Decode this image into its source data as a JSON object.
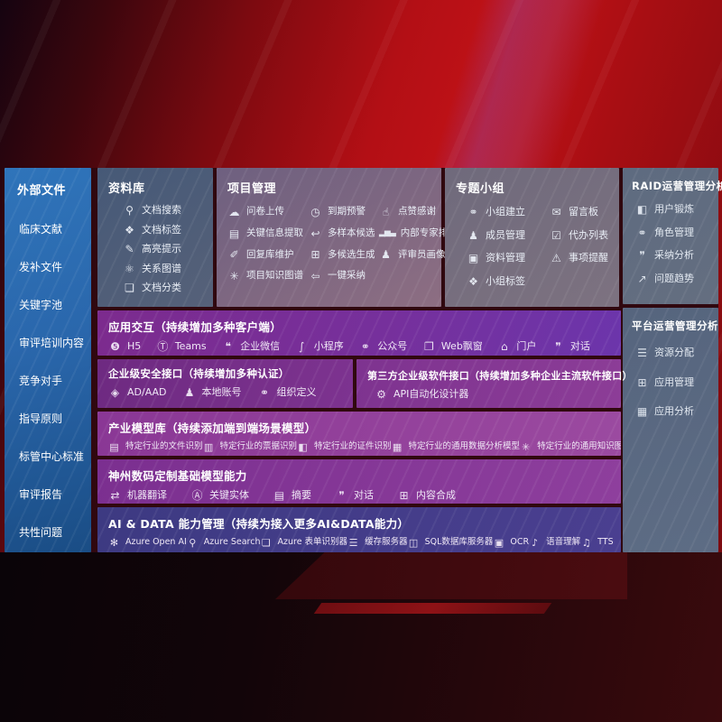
{
  "colors": {
    "background_red": "#b30f15",
    "sidebar_blue": "#2a6cb3",
    "panel_slate": "#5d6a80",
    "row_purple": "#7c2f91",
    "row_indigo": "#423a8a"
  },
  "sidebar": {
    "title": "外部文件",
    "items": [
      {
        "label": "临床文献"
      },
      {
        "label": "发补文件"
      },
      {
        "label": "关键字池"
      },
      {
        "label": "审评培训内容"
      },
      {
        "label": "竞争对手"
      },
      {
        "label": "指导原则"
      },
      {
        "label": "标管中心标准"
      },
      {
        "label": "审评报告"
      },
      {
        "label": "共性问题"
      }
    ]
  },
  "repository": {
    "title": "资料库",
    "items": [
      {
        "icon": "document-search-icon",
        "glyph": "⚲",
        "label": "文档搜索"
      },
      {
        "icon": "document-tag-icon",
        "glyph": "❖",
        "label": "文档标签"
      },
      {
        "icon": "highlighter-icon",
        "glyph": "✎",
        "label": "高亮提示"
      },
      {
        "icon": "relation-graph-icon",
        "glyph": "⚛",
        "label": "关系图谱"
      },
      {
        "icon": "document-category-icon",
        "glyph": "❏",
        "label": "文档分类"
      }
    ]
  },
  "project": {
    "title": "项目管理",
    "items": [
      {
        "icon": "cloud-upload-icon",
        "glyph": "☁",
        "label": "问卷上传"
      },
      {
        "icon": "alarm-icon",
        "glyph": "◷",
        "label": "到期预警"
      },
      {
        "icon": "thumbs-up-icon",
        "glyph": "☝",
        "label": "点赞感谢"
      },
      {
        "icon": "key-info-extract-icon",
        "glyph": "▤",
        "label": "关键信息提取"
      },
      {
        "icon": "reply-arrow-icon",
        "glyph": "↩",
        "label": "多样本候选"
      },
      {
        "icon": "ranking-icon",
        "glyph": "▂▅▃",
        "label": "内部专家排名"
      },
      {
        "icon": "pen-icon",
        "glyph": "✐",
        "label": "回复库维护"
      },
      {
        "icon": "puzzle-icon",
        "glyph": "⊞",
        "label": "多候选生成"
      },
      {
        "icon": "reviewer-portrait-icon",
        "glyph": "♟",
        "label": "评审员画像"
      },
      {
        "icon": "knowledge-graph-icon",
        "glyph": "✳",
        "label": "项目知识图谱"
      },
      {
        "icon": "adopt-arrow-icon",
        "glyph": "⇦",
        "label": "一键采纳"
      }
    ]
  },
  "topic_group": {
    "title": "专题小组",
    "items": [
      {
        "icon": "group-create-icon",
        "glyph": "⚭",
        "label": "小组建立"
      },
      {
        "icon": "bbs-board-icon",
        "glyph": "✉",
        "label": "留言板"
      },
      {
        "icon": "member-manage-icon",
        "glyph": "♟",
        "label": "成员管理"
      },
      {
        "icon": "todo-list-icon",
        "glyph": "☑",
        "label": "代办列表"
      },
      {
        "icon": "material-manage-icon",
        "glyph": "▣",
        "label": "资料管理"
      },
      {
        "icon": "reminder-bell-icon",
        "glyph": "⚠",
        "label": "事项提醒"
      },
      {
        "icon": "group-tag-icon",
        "glyph": "❖",
        "label": "小组标签"
      }
    ]
  },
  "raid": {
    "title": "RAID运营管理分析",
    "items": [
      {
        "icon": "user-card-icon",
        "glyph": "◧",
        "label": "用户锻炼"
      },
      {
        "icon": "role-manage-icon",
        "glyph": "⚭",
        "label": "角色管理"
      },
      {
        "icon": "adoption-analysis-icon",
        "glyph": "❞",
        "label": "采纳分析"
      },
      {
        "icon": "issue-trend-icon",
        "glyph": "↗",
        "label": "问题趋势"
      }
    ]
  },
  "platform": {
    "title": "平台运营管理分析",
    "items": [
      {
        "icon": "resource-list-icon",
        "glyph": "☰",
        "label": "资源分配"
      },
      {
        "icon": "app-grid-icon",
        "glyph": "⊞",
        "label": "应用管理"
      },
      {
        "icon": "app-analysis-icon",
        "glyph": "▦",
        "label": "应用分析"
      }
    ]
  },
  "interaction": {
    "title": "应用交互（持续增加多种客户端）",
    "items": [
      {
        "icon": "h5-icon",
        "glyph": "❺",
        "label": "H5"
      },
      {
        "icon": "teams-icon",
        "glyph": "Ⓣ",
        "label": "Teams"
      },
      {
        "icon": "wechat-work-icon",
        "glyph": "❝",
        "label": "企业微信"
      },
      {
        "icon": "miniprogram-icon",
        "glyph": "∫",
        "label": "小程序"
      },
      {
        "icon": "official-account-icon",
        "glyph": "⚭",
        "label": "公众号"
      },
      {
        "icon": "web-popup-icon",
        "glyph": "❐",
        "label": "Web飘窗"
      },
      {
        "icon": "portal-icon",
        "glyph": "⌂",
        "label": "门户"
      },
      {
        "icon": "dialog-icon",
        "glyph": "❞",
        "label": "对话"
      }
    ]
  },
  "security": {
    "title": "企业级安全接口（持续增加多种认证）",
    "items": [
      {
        "icon": "ad-aad-icon",
        "glyph": "◈",
        "label": "AD/AAD"
      },
      {
        "icon": "local-account-icon",
        "glyph": "♟",
        "label": "本地账号"
      },
      {
        "icon": "org-define-icon",
        "glyph": "⚭",
        "label": "组织定义"
      }
    ]
  },
  "third_party": {
    "title": "第三方企业级软件接口（持续增加多种企业主流软件接口）",
    "items": [
      {
        "icon": "api-designer-icon",
        "glyph": "⚙",
        "label": "API自动化设计器"
      }
    ]
  },
  "industry_models": {
    "title": "产业模型库（持续添加端到端场景模型）",
    "items": [
      {
        "icon": "file-recognition-icon",
        "glyph": "▤",
        "label": "特定行业的文件识别"
      },
      {
        "icon": "receipt-recognition-icon",
        "glyph": "▥",
        "label": "特定行业的票据识别"
      },
      {
        "icon": "id-recognition-icon",
        "glyph": "◧",
        "label": "特定行业的证件识别"
      },
      {
        "icon": "data-analysis-model-icon",
        "glyph": "▦",
        "label": "特定行业的通用数据分析模型"
      },
      {
        "icon": "knowledge-graph-model-icon",
        "glyph": "✳",
        "label": "特定行业的通用知识图谱模型"
      }
    ]
  },
  "base_models": {
    "title": "神州数码定制基础模型能力",
    "items": [
      {
        "icon": "translate-icon",
        "glyph": "⇄",
        "label": "机器翻译"
      },
      {
        "icon": "key-entity-icon",
        "glyph": "Ⓐ",
        "label": "关键实体"
      },
      {
        "icon": "summary-icon",
        "glyph": "▤",
        "label": "摘要"
      },
      {
        "icon": "dialog-icon",
        "glyph": "❞",
        "label": "对话"
      },
      {
        "icon": "content-synthesis-icon",
        "glyph": "⊞",
        "label": "内容合成"
      }
    ]
  },
  "ai_data": {
    "title": "AI & DATA 能力管理（持续为接入更多AI&DATA能力）",
    "items": [
      {
        "icon": "openai-icon",
        "glyph": "✻",
        "label": "Azure Open AI"
      },
      {
        "icon": "azure-search-icon",
        "glyph": "⚲",
        "label": "Azure Search"
      },
      {
        "icon": "form-recognizer-icon",
        "glyph": "❏",
        "label": "Azure 表单识别器"
      },
      {
        "icon": "cache-server-icon",
        "glyph": "☰",
        "label": "缓存服务器"
      },
      {
        "icon": "sql-server-icon",
        "glyph": "◫",
        "label": "SQL数据库服务器"
      },
      {
        "icon": "ocr-icon",
        "glyph": "▣",
        "label": "OCR"
      },
      {
        "icon": "speech-understanding-icon",
        "glyph": "♪",
        "label": "语音理解"
      },
      {
        "icon": "tts-icon",
        "glyph": "♫",
        "label": "TTS"
      }
    ]
  }
}
